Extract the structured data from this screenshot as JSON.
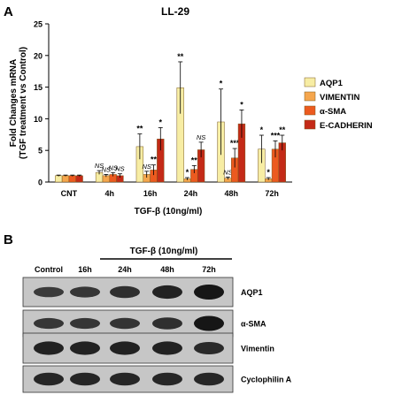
{
  "panel_a": {
    "letter": "A",
    "stimulus_label": "TGF-β (10ng/ml)"
  },
  "panel_b": {
    "letter": "B",
    "treatment_label": "TGF-β (10ng/ml)",
    "lanes": [
      "Control",
      "16h",
      "24h",
      "48h",
      "72h"
    ],
    "blots": [
      {
        "label": "AQP1",
        "intensity": [
          0.55,
          0.6,
          0.7,
          0.85,
          1.0
        ]
      },
      {
        "label": "α-SMA",
        "intensity": [
          0.6,
          0.6,
          0.62,
          0.7,
          1.0
        ]
      },
      {
        "label": "Vimentin",
        "intensity": [
          0.85,
          0.85,
          0.85,
          0.85,
          0.75
        ]
      },
      {
        "label": "Cyclophilin A",
        "intensity": [
          0.8,
          0.8,
          0.8,
          0.8,
          0.8
        ]
      }
    ]
  },
  "colors": {
    "AQP1": "#f7eda4",
    "VIMENTIN": "#f5a64d",
    "α-SMA": "#ec5a1f",
    "E-CADHERIN": "#c42a17",
    "blot_bg": "#c6c6c6",
    "band": "#161616"
  },
  "chart_data": {
    "type": "bar",
    "title": "LL-29",
    "ylabel": "Fold Changes mRNA\n(TGF treatment vs Control)",
    "xlabel": "TGF-β (10ng/ml)",
    "categories": [
      "CNT",
      "4h",
      "16h",
      "24h",
      "48h",
      "72h"
    ],
    "ylim": [
      0,
      25
    ],
    "yticks": [
      0,
      5,
      10,
      15,
      20,
      25
    ],
    "legend_position": "right",
    "series": [
      {
        "name": "AQP1",
        "values": [
          1.0,
          1.5,
          5.6,
          14.9,
          9.5,
          5.2
        ],
        "errors": [
          0.1,
          0.3,
          2.0,
          4.1,
          5.2,
          2.2
        ],
        "significance": [
          "",
          "NS",
          "**",
          "**",
          "*",
          "*"
        ]
      },
      {
        "name": "VIMENTIN",
        "values": [
          1.0,
          1.0,
          1.2,
          0.5,
          0.6,
          0.5
        ],
        "errors": [
          0.1,
          0.2,
          0.5,
          0.2,
          0.2,
          0.2
        ],
        "significance": [
          "",
          "NS",
          "NS",
          "*",
          "NS",
          "*"
        ]
      },
      {
        "name": "α-SMA",
        "values": [
          1.0,
          1.2,
          1.9,
          2.0,
          3.8,
          5.2
        ],
        "errors": [
          0.1,
          0.3,
          0.8,
          0.6,
          1.5,
          1.3
        ],
        "significance": [
          "",
          "NS",
          "**",
          "**",
          "***",
          "***"
        ]
      },
      {
        "name": "E-CADHERIN",
        "values": [
          1.0,
          1.0,
          6.8,
          5.1,
          9.2,
          6.2
        ],
        "errors": [
          0.1,
          0.3,
          1.8,
          1.2,
          2.2,
          1.2
        ],
        "significance": [
          "",
          "NS",
          "*",
          "NS",
          "*",
          "**"
        ]
      }
    ]
  }
}
